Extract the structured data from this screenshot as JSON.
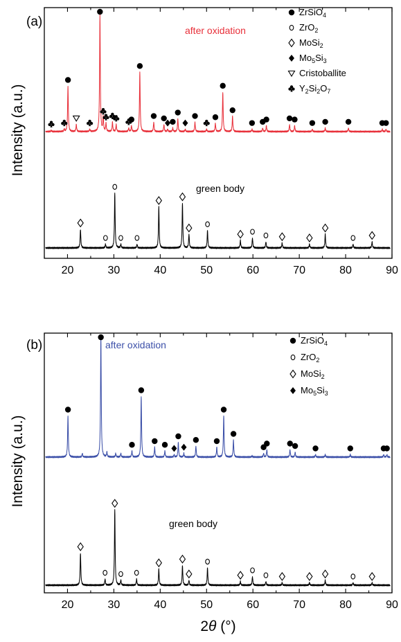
{
  "chart_data": [
    {
      "type": "line",
      "panel_label": "(a)",
      "ylabel": "Intensity (a.u.)",
      "xlabel": "",
      "xlim": [
        15,
        90
      ],
      "x_ticks": [
        20,
        30,
        40,
        50,
        60,
        70,
        80,
        90
      ],
      "grid": false,
      "legend_position": "top-right",
      "legend": [
        {
          "symbol": "filled-circle",
          "label": "ZrSiO",
          "sub": "4",
          "tail": ""
        },
        {
          "symbol": "open-circle",
          "label": "ZrO",
          "sub": "2",
          "tail": ""
        },
        {
          "symbol": "open-diamond",
          "label": "MoSi",
          "sub": "2",
          "tail": ""
        },
        {
          "symbol": "filled-diamond",
          "label": "Mo",
          "sub": "5",
          "tail": "Si",
          "sub2": "3"
        },
        {
          "symbol": "open-triangle-down",
          "label": "Cristoballite",
          "sub": "",
          "tail": ""
        },
        {
          "symbol": "club",
          "label": "Y",
          "sub": "2",
          "tail": "Si",
          "sub2": "2",
          "tail2": "O",
          "sub3": "7"
        }
      ],
      "series": [
        {
          "name": "after oxidation",
          "color": "#e8303a",
          "peaks": [
            {
              "x": 20.1,
              "h": 0.39,
              "m": "filled-circle"
            },
            {
              "x": 27.0,
              "h": 1.0,
              "m": "filled-circle"
            },
            {
              "x": 35.6,
              "h": 0.51,
              "m": "filled-circle"
            },
            {
              "x": 53.5,
              "h": 0.34,
              "m": "filled-circle"
            },
            {
              "x": 43.8,
              "h": 0.11,
              "m": "filled-circle"
            },
            {
              "x": 38.6,
              "h": 0.08,
              "m": "filled-circle"
            },
            {
              "x": 40.8,
              "h": 0.06,
              "m": "filled-circle"
            },
            {
              "x": 47.5,
              "h": 0.08,
              "m": "filled-circle"
            },
            {
              "x": 51.9,
              "h": 0.07,
              "m": "filled-circle"
            },
            {
              "x": 55.6,
              "h": 0.13,
              "m": "filled-circle"
            },
            {
              "x": 59.8,
              "h": 0.02,
              "m": "filled-circle"
            },
            {
              "x": 62.1,
              "h": 0.03,
              "m": "filled-circle"
            },
            {
              "x": 62.9,
              "h": 0.05,
              "m": "filled-circle"
            },
            {
              "x": 67.9,
              "h": 0.06,
              "m": "filled-circle"
            },
            {
              "x": 69.0,
              "h": 0.05,
              "m": "filled-circle"
            },
            {
              "x": 72.8,
              "h": 0.02,
              "m": "filled-circle"
            },
            {
              "x": 75.6,
              "h": 0.03,
              "m": "filled-circle"
            },
            {
              "x": 80.6,
              "h": 0.03,
              "m": "filled-circle"
            },
            {
              "x": 87.9,
              "h": 0.02,
              "m": "filled-circle"
            },
            {
              "x": 88.7,
              "h": 0.02,
              "m": "filled-circle"
            },
            {
              "x": 21.9,
              "h": 0.06,
              "m": "open-triangle-down"
            },
            {
              "x": 16.5,
              "h": 0.01,
              "m": "club"
            },
            {
              "x": 19.3,
              "h": 0.02,
              "m": "club"
            },
            {
              "x": 24.8,
              "h": 0.02,
              "m": "club"
            },
            {
              "x": 27.7,
              "h": 0.12,
              "m": "club"
            },
            {
              "x": 28.3,
              "h": 0.07,
              "m": "club"
            },
            {
              "x": 29.7,
              "h": 0.08,
              "m": "club"
            },
            {
              "x": 30.5,
              "h": 0.06,
              "m": "club"
            },
            {
              "x": 33.2,
              "h": 0.03,
              "m": "club"
            },
            {
              "x": 50.0,
              "h": 0.02,
              "m": "club"
            },
            {
              "x": 33.8,
              "h": 0.05,
              "m": "filled-circle"
            },
            {
              "x": 42.7,
              "h": 0.03,
              "m": "filled-circle"
            },
            {
              "x": 41.6,
              "h": 0.02,
              "m": "filled-diamond"
            },
            {
              "x": 45.4,
              "h": 0.02,
              "m": "filled-diamond"
            }
          ]
        },
        {
          "name": "green body",
          "color": "#000000",
          "peaks": [
            {
              "x": 22.8,
              "h": 0.15,
              "m": "open-diamond"
            },
            {
              "x": 28.2,
              "h": 0.03,
              "m": "open-circle"
            },
            {
              "x": 30.2,
              "h": 0.44,
              "m": "open-circle"
            },
            {
              "x": 31.5,
              "h": 0.03,
              "m": "open-circle"
            },
            {
              "x": 35.0,
              "h": 0.03,
              "m": "open-circle"
            },
            {
              "x": 39.7,
              "h": 0.33,
              "m": "open-diamond"
            },
            {
              "x": 44.8,
              "h": 0.36,
              "m": "open-diamond"
            },
            {
              "x": 46.2,
              "h": 0.11,
              "m": "open-diamond"
            },
            {
              "x": 50.2,
              "h": 0.14,
              "m": "open-circle"
            },
            {
              "x": 57.3,
              "h": 0.06,
              "m": "open-diamond"
            },
            {
              "x": 59.9,
              "h": 0.08,
              "m": "open-circle"
            },
            {
              "x": 62.8,
              "h": 0.05,
              "m": "open-circle"
            },
            {
              "x": 66.3,
              "h": 0.04,
              "m": "open-diamond"
            },
            {
              "x": 72.2,
              "h": 0.03,
              "m": "open-diamond"
            },
            {
              "x": 75.6,
              "h": 0.11,
              "m": "open-diamond"
            },
            {
              "x": 81.6,
              "h": 0.03,
              "m": "open-circle"
            },
            {
              "x": 85.7,
              "h": 0.05,
              "m": "open-diamond"
            }
          ]
        }
      ]
    },
    {
      "type": "line",
      "panel_label": "(b)",
      "ylabel": "Intensity (a.u.)",
      "xlabel": "2θ (°)",
      "xlim": [
        15,
        90
      ],
      "x_ticks": [
        20,
        30,
        40,
        50,
        60,
        70,
        80,
        90
      ],
      "grid": false,
      "legend_position": "top-right",
      "legend": [
        {
          "symbol": "filled-circle",
          "label": "ZrSiO",
          "sub": "4",
          "tail": ""
        },
        {
          "symbol": "open-circle",
          "label": "ZrO",
          "sub": "2",
          "tail": ""
        },
        {
          "symbol": "open-diamond",
          "label": "MoSi",
          "sub": "2",
          "tail": ""
        },
        {
          "symbol": "filled-diamond",
          "label": "Mo",
          "sub": "5",
          "tail": "Si",
          "sub2": "3"
        }
      ],
      "series": [
        {
          "name": "after oxidation",
          "color": "#3b4fa8",
          "peaks": [
            {
              "x": 20.1,
              "h": 0.34,
              "m": "filled-circle"
            },
            {
              "x": 27.2,
              "h": 1.0,
              "m": "filled-circle"
            },
            {
              "x": 35.9,
              "h": 0.5,
              "m": "filled-circle"
            },
            {
              "x": 53.7,
              "h": 0.34,
              "m": "filled-circle"
            },
            {
              "x": 43.9,
              "h": 0.12,
              "m": "filled-circle"
            },
            {
              "x": 38.8,
              "h": 0.08,
              "m": "filled-circle"
            },
            {
              "x": 41.0,
              "h": 0.05,
              "m": "filled-circle"
            },
            {
              "x": 47.7,
              "h": 0.09,
              "m": "filled-circle"
            },
            {
              "x": 52.2,
              "h": 0.08,
              "m": "filled-circle"
            },
            {
              "x": 55.8,
              "h": 0.14,
              "m": "filled-circle"
            },
            {
              "x": 33.9,
              "h": 0.05,
              "m": "filled-circle"
            },
            {
              "x": 62.3,
              "h": 0.03,
              "m": "filled-circle"
            },
            {
              "x": 63.0,
              "h": 0.06,
              "m": "filled-circle"
            },
            {
              "x": 68.0,
              "h": 0.06,
              "m": "filled-circle"
            },
            {
              "x": 69.1,
              "h": 0.04,
              "m": "filled-circle"
            },
            {
              "x": 73.5,
              "h": 0.02,
              "m": "filled-circle"
            },
            {
              "x": 81.0,
              "h": 0.02,
              "m": "filled-circle"
            },
            {
              "x": 88.2,
              "h": 0.02,
              "m": "filled-circle"
            },
            {
              "x": 88.9,
              "h": 0.02,
              "m": "filled-circle"
            },
            {
              "x": 43.0,
              "h": 0.02,
              "m": "filled-diamond"
            },
            {
              "x": 45.1,
              "h": 0.03,
              "m": "filled-diamond"
            },
            {
              "x": 23.2,
              "h": 0.03,
              "m": "none"
            },
            {
              "x": 28.5,
              "h": 0.04,
              "m": "none"
            },
            {
              "x": 30.4,
              "h": 0.03,
              "m": "none"
            },
            {
              "x": 31.5,
              "h": 0.03,
              "m": "none"
            },
            {
              "x": 59.8,
              "h": 0.01,
              "m": "none"
            },
            {
              "x": 75.6,
              "h": 0.02,
              "m": "none"
            }
          ]
        },
        {
          "name": "green body",
          "color": "#000000",
          "peaks": [
            {
              "x": 22.8,
              "h": 0.26,
              "m": "open-diamond"
            },
            {
              "x": 28.1,
              "h": 0.05,
              "m": "open-circle"
            },
            {
              "x": 30.2,
              "h": 0.61,
              "m": "open-diamond"
            },
            {
              "x": 31.5,
              "h": 0.04,
              "m": "open-circle"
            },
            {
              "x": 34.9,
              "h": 0.05,
              "m": "open-circle"
            },
            {
              "x": 39.7,
              "h": 0.13,
              "m": "open-diamond"
            },
            {
              "x": 44.8,
              "h": 0.16,
              "m": "open-diamond"
            },
            {
              "x": 46.2,
              "h": 0.04,
              "m": "open-diamond"
            },
            {
              "x": 50.2,
              "h": 0.14,
              "m": "open-circle"
            },
            {
              "x": 57.3,
              "h": 0.03,
              "m": "open-diamond"
            },
            {
              "x": 59.9,
              "h": 0.07,
              "m": "open-circle"
            },
            {
              "x": 62.8,
              "h": 0.03,
              "m": "open-circle"
            },
            {
              "x": 66.3,
              "h": 0.02,
              "m": "open-diamond"
            },
            {
              "x": 72.2,
              "h": 0.02,
              "m": "open-diamond"
            },
            {
              "x": 75.6,
              "h": 0.04,
              "m": "open-diamond"
            },
            {
              "x": 81.6,
              "h": 0.02,
              "m": "open-circle"
            },
            {
              "x": 85.7,
              "h": 0.02,
              "m": "open-diamond"
            }
          ]
        }
      ]
    }
  ]
}
